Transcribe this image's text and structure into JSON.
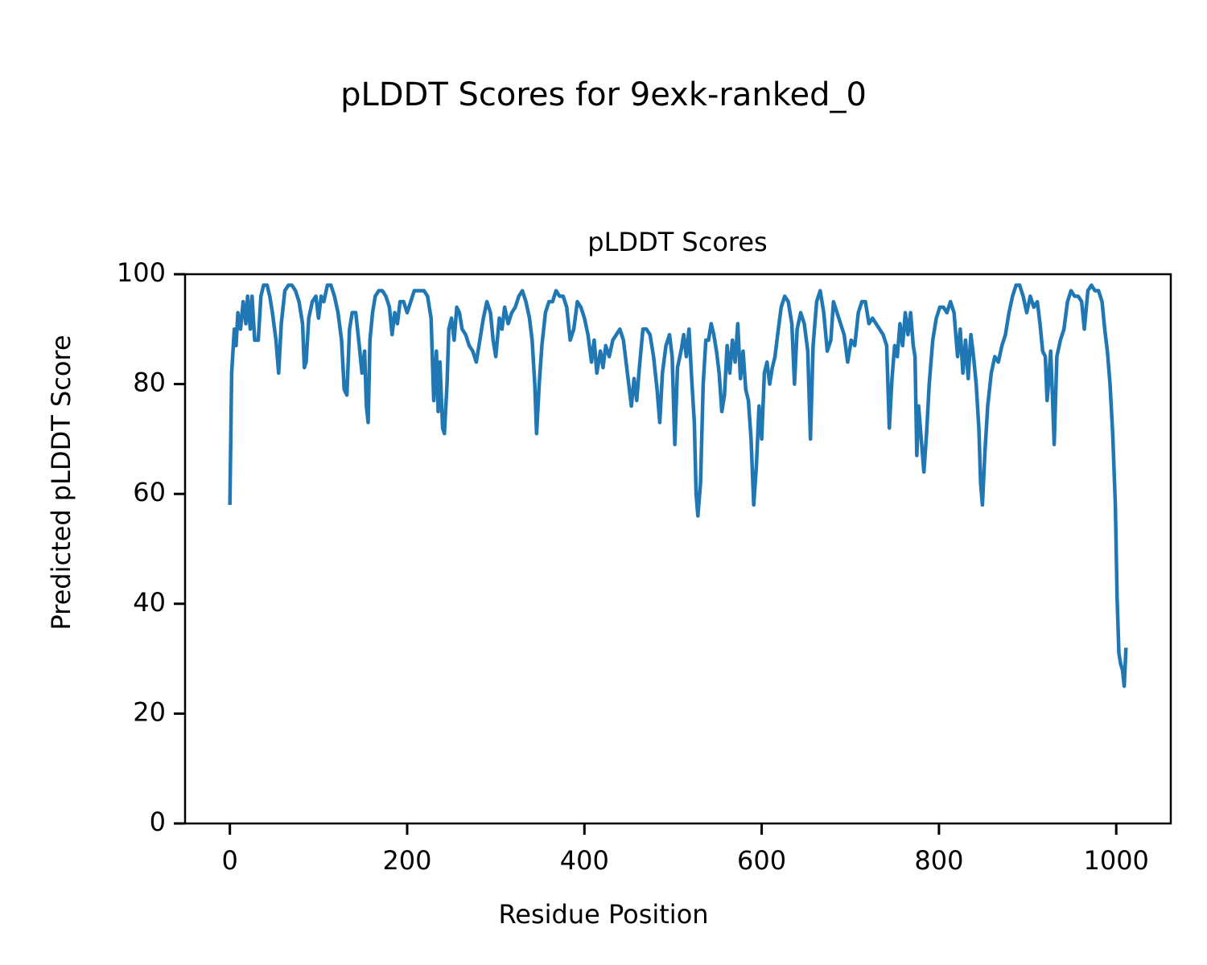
{
  "chart_data": {
    "type": "line",
    "title": "pLDDT Scores for 9exk-ranked_0",
    "subtitle": "pLDDT Scores",
    "x_label": "Residue Position",
    "y_label": "Predicted pLDDT Score",
    "xlim": [
      -50.55,
      1061.55
    ],
    "ylim": [
      0,
      100
    ],
    "xticks": [
      0,
      200,
      400,
      600,
      800,
      1000
    ],
    "yticks": [
      0,
      20,
      40,
      60,
      80,
      100
    ],
    "grid": false,
    "x": [
      0,
      2,
      5,
      7,
      9,
      12,
      15,
      18,
      20,
      23,
      25,
      28,
      32,
      35,
      38,
      42,
      45,
      48,
      52,
      55,
      58,
      62,
      66,
      70,
      74,
      78,
      82,
      84,
      86,
      89,
      93,
      97,
      100,
      103,
      106,
      110,
      114,
      118,
      122,
      126,
      129,
      132,
      135,
      138,
      142,
      146,
      149,
      152,
      154,
      156,
      158,
      161,
      164,
      168,
      172,
      176,
      180,
      183,
      186,
      189,
      192,
      196,
      200,
      204,
      208,
      214,
      219,
      223,
      227,
      230,
      233,
      235,
      237,
      240,
      242,
      245,
      247,
      250,
      253,
      256,
      259,
      262,
      266,
      270,
      274,
      278,
      282,
      286,
      290,
      294,
      297,
      300,
      304,
      307,
      310,
      314,
      318,
      322,
      326,
      330,
      334,
      338,
      341,
      344,
      346,
      349,
      352,
      356,
      360,
      364,
      368,
      372,
      376,
      380,
      384,
      388,
      392,
      396,
      400,
      404,
      408,
      411,
      414,
      418,
      421,
      424,
      428,
      432,
      436,
      440,
      444,
      447,
      450,
      453,
      456,
      459,
      462,
      466,
      470,
      474,
      478,
      482,
      485,
      488,
      492,
      496,
      499,
      502,
      505,
      509,
      512,
      515,
      518,
      521,
      524,
      526,
      528,
      531,
      534,
      537,
      540,
      543,
      546,
      549,
      552,
      555,
      558,
      561,
      564,
      567,
      570,
      573,
      576,
      579,
      582,
      585,
      588,
      591,
      594,
      597,
      600,
      603,
      606,
      609,
      612,
      615,
      618,
      622,
      626,
      630,
      634,
      637,
      640,
      644,
      648,
      652,
      655,
      658,
      662,
      666,
      670,
      674,
      678,
      681,
      685,
      689,
      693,
      697,
      701,
      705,
      709,
      713,
      717,
      721,
      725,
      729,
      733,
      737,
      741,
      744,
      747,
      750,
      753,
      756,
      759,
      762,
      765,
      768,
      771,
      773,
      775,
      777,
      780,
      783,
      786,
      789,
      793,
      797,
      801,
      805,
      809,
      813,
      817,
      821,
      824,
      827,
      830,
      833,
      836,
      839,
      842,
      845,
      847,
      849,
      852,
      855,
      859,
      863,
      867,
      871,
      875,
      879,
      883,
      887,
      891,
      895,
      899,
      903,
      907,
      911,
      914,
      917,
      920,
      922,
      924,
      926,
      928,
      930,
      933,
      937,
      941,
      945,
      949,
      953,
      957,
      961,
      964,
      968,
      972,
      976,
      980,
      984,
      987,
      990,
      993,
      996,
      999,
      1001,
      1003,
      1005,
      1007,
      1009,
      1011
    ],
    "series": [
      {
        "color": "#1f77b4",
        "values": [
          58,
          82,
          90,
          87,
          93,
          90,
          95,
          91,
          96,
          90,
          96,
          88,
          88,
          96,
          98,
          98,
          96,
          93,
          88,
          82,
          91,
          97,
          98,
          98,
          97,
          95,
          91,
          83,
          84,
          92,
          95,
          96,
          92,
          96,
          95,
          98,
          98,
          96,
          93,
          88,
          79,
          78,
          90,
          93,
          93,
          87,
          82,
          86,
          76,
          73,
          88,
          93,
          96,
          97,
          97,
          96,
          94,
          89,
          93,
          91,
          95,
          95,
          93,
          95,
          97,
          97,
          97,
          96,
          92,
          77,
          86,
          75,
          84,
          72,
          71,
          80,
          90,
          92,
          88,
          94,
          93,
          90,
          89,
          87,
          86,
          84,
          88,
          92,
          95,
          93,
          88,
          85,
          92,
          90,
          94,
          91,
          93,
          94,
          96,
          97,
          95,
          92,
          88,
          80,
          71,
          80,
          87,
          93,
          95,
          95,
          97,
          96,
          96,
          94,
          88,
          90,
          95,
          94,
          92,
          89,
          84,
          88,
          82,
          86,
          83,
          87,
          85,
          88,
          89,
          90,
          88,
          84,
          80,
          76,
          81,
          77,
          83,
          90,
          90,
          89,
          85,
          79,
          73,
          82,
          87,
          89,
          85,
          69,
          83,
          86,
          89,
          85,
          90,
          81,
          73,
          60,
          56,
          62,
          80,
          88,
          88,
          91,
          89,
          86,
          82,
          75,
          78,
          87,
          82,
          88,
          84,
          91,
          81,
          86,
          79,
          77,
          70,
          58,
          65,
          76,
          70,
          82,
          84,
          80,
          83,
          85,
          89,
          94,
          96,
          95,
          91,
          80,
          90,
          93,
          91,
          86,
          70,
          87,
          95,
          97,
          93,
          86,
          88,
          95,
          93,
          91,
          89,
          84,
          88,
          87,
          93,
          95,
          95,
          91,
          92,
          91,
          90,
          89,
          87,
          72,
          81,
          87,
          85,
          91,
          87,
          93,
          89,
          93,
          87,
          85,
          67,
          76,
          70,
          64,
          71,
          80,
          88,
          92,
          94,
          94,
          93,
          95,
          93,
          85,
          90,
          82,
          88,
          81,
          89,
          85,
          80,
          72,
          62,
          58,
          68,
          76,
          82,
          85,
          84,
          87,
          89,
          93,
          96,
          98,
          98,
          96,
          93,
          96,
          94,
          95,
          91,
          86,
          85,
          77,
          81,
          86,
          78,
          69,
          85,
          88,
          90,
          95,
          97,
          96,
          96,
          95,
          90,
          97,
          98,
          97,
          97,
          95,
          90,
          86,
          80,
          71,
          58,
          41,
          31,
          29,
          28,
          25,
          32
        ]
      }
    ]
  }
}
